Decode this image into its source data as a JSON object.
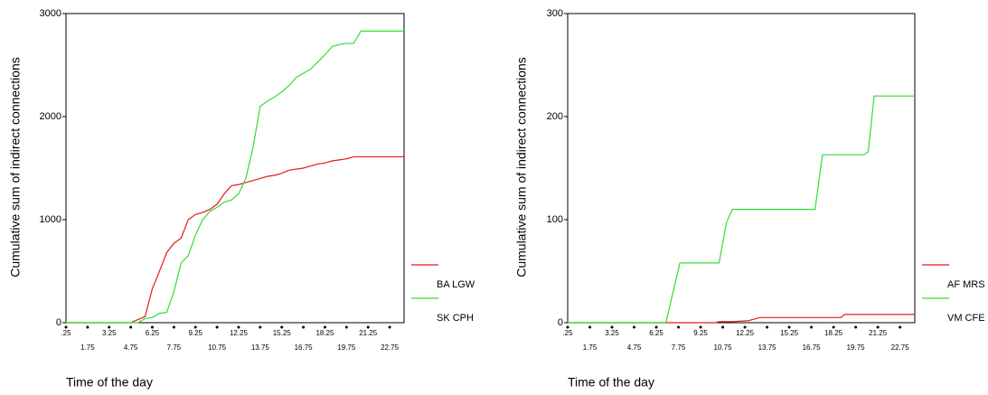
{
  "chart_data": [
    {
      "type": "line",
      "y_label": "Cumulative sum of indirect connections",
      "x_label": "Time of the day",
      "x": [
        0.25,
        4.75,
        5.25,
        5.75,
        6.25,
        6.75,
        7.25,
        7.75,
        8.25,
        8.75,
        9.25,
        9.75,
        10.25,
        10.75,
        11.25,
        11.75,
        12.25,
        12.75,
        13.25,
        13.75,
        14.25,
        14.75,
        15.25,
        15.75,
        16.25,
        16.75,
        17.25,
        17.75,
        18.25,
        18.75,
        19.25,
        19.75,
        20.25,
        20.75,
        21.25,
        23.75
      ],
      "series": [
        {
          "name": "BA LGW",
          "color": "#e41a1c",
          "values": [
            0,
            0,
            30,
            60,
            330,
            500,
            680,
            770,
            820,
            1000,
            1050,
            1070,
            1100,
            1150,
            1250,
            1330,
            1340,
            1360,
            1380,
            1400,
            1420,
            1430,
            1450,
            1480,
            1490,
            1500,
            1520,
            1540,
            1550,
            1570,
            1580,
            1590,
            1610,
            1610,
            1610,
            1610
          ]
        },
        {
          "name": "SK CPH",
          "color": "#33dd33",
          "values": [
            0,
            0,
            0,
            40,
            50,
            90,
            100,
            300,
            580,
            650,
            850,
            1000,
            1080,
            1120,
            1170,
            1190,
            1250,
            1400,
            1700,
            2100,
            2150,
            2190,
            2240,
            2300,
            2380,
            2420,
            2460,
            2530,
            2600,
            2680,
            2700,
            2710,
            2710,
            2830,
            2830,
            2830
          ]
        }
      ],
      "xlim": [
        0.25,
        23.75
      ],
      "xticks": [
        {
          "value": 0.25,
          "label": ".25"
        },
        1.75,
        3.25,
        4.75,
        6.25,
        7.75,
        9.25,
        10.75,
        12.25,
        13.75,
        15.25,
        16.75,
        18.25,
        19.75,
        21.25,
        22.75
      ],
      "ylim": [
        0,
        3000
      ],
      "yticks": [
        0,
        1000,
        2000,
        3000
      ]
    },
    {
      "type": "line",
      "y_label": "Cumulative sum of indirect connections",
      "x_label": "Time of the day",
      "x": [
        0.25,
        6.9,
        7.85,
        10.25,
        10.5,
        11.0,
        11.4,
        12.5,
        13.25,
        17.0,
        17.5,
        18.75,
        19.0,
        20.3,
        20.6,
        21.0,
        23.75
      ],
      "series": [
        {
          "name": "AF MRS",
          "color": "#e41a1c",
          "values": [
            0,
            0,
            0,
            0,
            1,
            1,
            1,
            2,
            5,
            5,
            5,
            5,
            8,
            8,
            8,
            8,
            8
          ]
        },
        {
          "name": "VM CFE",
          "color": "#33dd33",
          "values": [
            0,
            0,
            58,
            58,
            58,
            97,
            110,
            110,
            110,
            110,
            163,
            163,
            163,
            163,
            166,
            220,
            220
          ]
        }
      ],
      "xlim": [
        0.25,
        23.75
      ],
      "xticks": [
        {
          "value": 0.25,
          "label": ".25"
        },
        1.75,
        3.25,
        4.75,
        6.25,
        7.75,
        9.25,
        10.75,
        12.25,
        13.75,
        15.25,
        16.75,
        18.25,
        19.75,
        21.25,
        22.75
      ],
      "ylim": [
        0,
        300
      ],
      "yticks": [
        0,
        100,
        200,
        300
      ]
    }
  ]
}
